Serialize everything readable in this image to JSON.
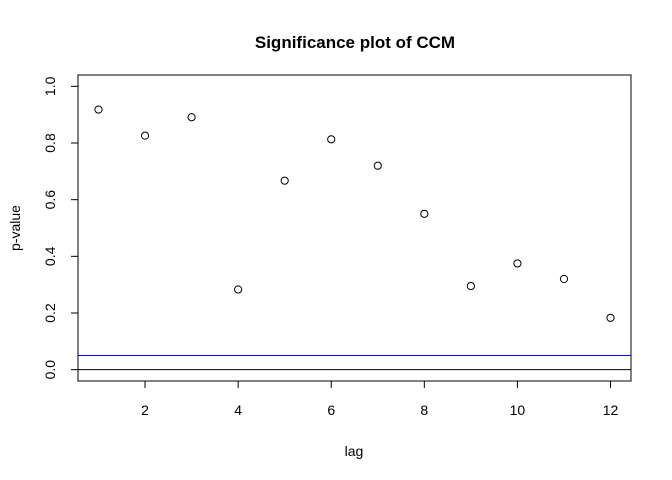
{
  "chart_data": {
    "type": "scatter",
    "title": "Significance plot of CCM",
    "xlabel": "lag",
    "ylabel": "p-value",
    "xlim": [
      0.56,
      12.44
    ],
    "ylim": [
      -0.04,
      1.04
    ],
    "x_ticks": [
      2,
      4,
      6,
      8,
      10,
      12
    ],
    "y_ticks": [
      0.0,
      0.2,
      0.4,
      0.6,
      0.8,
      1.0
    ],
    "y_tick_labels": [
      "0.0",
      "0.2",
      "0.4",
      "0.6",
      "0.8",
      "1.0"
    ],
    "x": [
      1,
      2,
      3,
      4,
      5,
      6,
      7,
      8,
      9,
      10,
      11,
      12
    ],
    "y": [
      0.918,
      0.826,
      0.891,
      0.283,
      0.667,
      0.813,
      0.72,
      0.55,
      0.295,
      0.375,
      0.32,
      0.183
    ],
    "hlines": [
      {
        "y": 0.0,
        "color": "#000000"
      },
      {
        "y": 0.05,
        "color": "#0000ff"
      }
    ],
    "grid": false,
    "point_style": "open-circle"
  }
}
